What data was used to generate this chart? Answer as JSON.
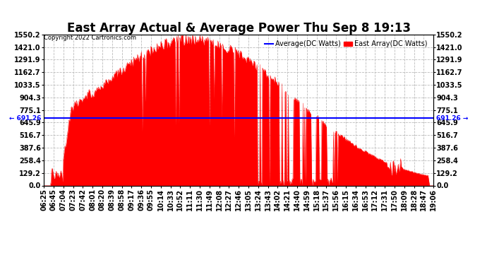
{
  "title": "East Array Actual & Average Power Thu Sep 8 19:13",
  "copyright": "Copyright 2022 Cartronics.com",
  "legend_average": "Average(DC Watts)",
  "legend_east": "East Array(DC Watts)",
  "average_value": 691.26,
  "y_ticks": [
    0.0,
    129.2,
    258.4,
    387.6,
    516.7,
    645.9,
    775.1,
    904.3,
    1033.5,
    1162.7,
    1291.9,
    1421.0,
    1550.2
  ],
  "ymax": 1550.2,
  "ymin": 0.0,
  "fill_color": "#ff0000",
  "line_color": "#ff0000",
  "avg_line_color": "#0000ff",
  "background_color": "#ffffff",
  "grid_color": "#bbbbbb",
  "title_fontsize": 12,
  "tick_fontsize": 7,
  "x_times": [
    "06:25",
    "06:45",
    "07:04",
    "07:23",
    "07:42",
    "08:01",
    "08:20",
    "08:39",
    "08:58",
    "09:17",
    "09:36",
    "09:55",
    "10:14",
    "10:33",
    "10:52",
    "11:11",
    "11:30",
    "11:49",
    "12:08",
    "12:27",
    "12:46",
    "13:05",
    "13:24",
    "13:43",
    "14:02",
    "14:21",
    "14:40",
    "14:59",
    "15:18",
    "15:37",
    "15:56",
    "16:15",
    "16:34",
    "16:53",
    "17:12",
    "17:31",
    "17:50",
    "18:09",
    "18:28",
    "18:47",
    "19:06"
  ]
}
